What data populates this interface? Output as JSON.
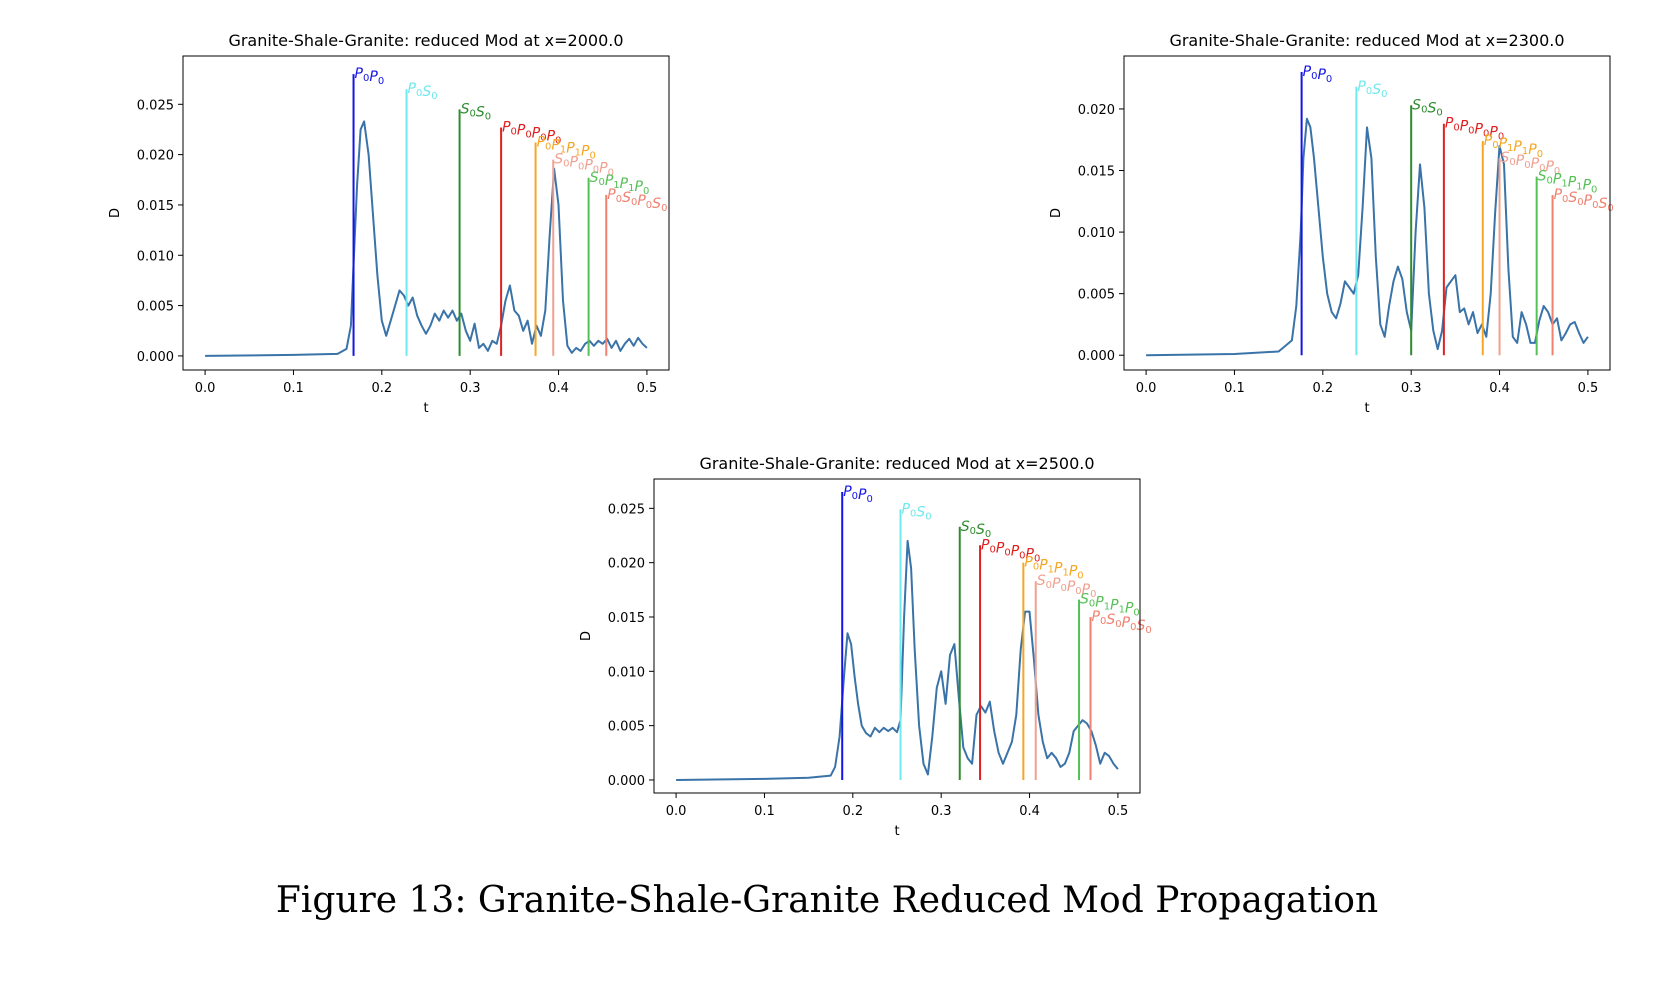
{
  "figure": {
    "caption": "Figure 13: Granite-Shale-Granite Reduced Mod Propagation"
  },
  "colors": {
    "curve": "#3a73a8",
    "P0P0": "#1414e6",
    "P0S0": "#6fe8ee",
    "S0S0": "#2e8b2e",
    "P0P0P0P0": "#e02020",
    "P0P1P1P0": "#f5a623",
    "S0P0P0P0": "#f0a090",
    "S0P1P1P0": "#55c055",
    "P0S0P0S0": "#f08070"
  },
  "chart_data": [
    {
      "type": "line",
      "title": "Granite-Shale-Granite: reduced Mod at x=2000.0",
      "xlabel": "t",
      "ylabel": "D",
      "xlim": [
        -0.025,
        0.525
      ],
      "ylim": [
        -0.0014,
        0.0298
      ],
      "xticks": [
        0.0,
        0.1,
        0.2,
        0.3,
        0.4,
        0.5
      ],
      "xtick_labels": [
        "0.0",
        "0.1",
        "0.2",
        "0.3",
        "0.4",
        "0.5"
      ],
      "yticks": [
        0.0,
        0.005,
        0.01,
        0.015,
        0.02,
        0.025
      ],
      "ytick_labels": [
        "0.000",
        "0.005",
        "0.010",
        "0.015",
        "0.020",
        "0.025"
      ],
      "grid": false,
      "series": [
        {
          "x": [
            0.0,
            0.1,
            0.15,
            0.16,
            0.165,
            0.168,
            0.172,
            0.176,
            0.18,
            0.185,
            0.19,
            0.195,
            0.2,
            0.205,
            0.21,
            0.215,
            0.22,
            0.225,
            0.23,
            0.235,
            0.24,
            0.245,
            0.25,
            0.255,
            0.26,
            0.265,
            0.27,
            0.275,
            0.28,
            0.285,
            0.29,
            0.295,
            0.3,
            0.305,
            0.31,
            0.315,
            0.32,
            0.325,
            0.33,
            0.335,
            0.34,
            0.345,
            0.35,
            0.355,
            0.36,
            0.365,
            0.37,
            0.375,
            0.38,
            0.385,
            0.39,
            0.395,
            0.4,
            0.405,
            0.41,
            0.415,
            0.42,
            0.425,
            0.43,
            0.435,
            0.44,
            0.445,
            0.45,
            0.455,
            0.46,
            0.465,
            0.47,
            0.475,
            0.48,
            0.485,
            0.49,
            0.495,
            0.5
          ],
          "y": [
            0.0,
            0.0001,
            0.0002,
            0.0007,
            0.003,
            0.009,
            0.017,
            0.0225,
            0.0233,
            0.02,
            0.014,
            0.008,
            0.0035,
            0.002,
            0.0035,
            0.005,
            0.0065,
            0.006,
            0.005,
            0.0058,
            0.004,
            0.003,
            0.0022,
            0.003,
            0.0042,
            0.0035,
            0.0045,
            0.0038,
            0.0045,
            0.0035,
            0.0042,
            0.0025,
            0.0015,
            0.0032,
            0.0008,
            0.0012,
            0.0005,
            0.0015,
            0.0012,
            0.003,
            0.0055,
            0.007,
            0.0045,
            0.004,
            0.0025,
            0.0035,
            0.0012,
            0.003,
            0.002,
            0.0045,
            0.012,
            0.0186,
            0.015,
            0.0055,
            0.001,
            0.0003,
            0.0008,
            0.0005,
            0.0012,
            0.0015,
            0.001,
            0.0015,
            0.0012,
            0.0017,
            0.0008,
            0.0015,
            0.0005,
            0.0012,
            0.0017,
            0.001,
            0.0018,
            0.0012,
            0.0008
          ]
        }
      ],
      "arrivals": [
        {
          "key": "P0P0",
          "t": 0.168,
          "top": 0.028
        },
        {
          "key": "P0S0",
          "t": 0.228,
          "top": 0.0265
        },
        {
          "key": "S0S0",
          "t": 0.288,
          "top": 0.0245
        },
        {
          "key": "P0P0P0P0",
          "t": 0.335,
          "top": 0.0227
        },
        {
          "key": "P0P1P1P0",
          "t": 0.374,
          "top": 0.0212
        },
        {
          "key": "S0P0P0P0",
          "t": 0.394,
          "top": 0.0195
        },
        {
          "key": "S0P1P1P0",
          "t": 0.434,
          "top": 0.0177
        },
        {
          "key": "P0S0P0S0",
          "t": 0.454,
          "top": 0.016
        }
      ]
    },
    {
      "type": "line",
      "title": "Granite-Shale-Granite: reduced Mod at x=2300.0",
      "xlabel": "t",
      "ylabel": "D",
      "xlim": [
        -0.025,
        0.525
      ],
      "ylim": [
        -0.0012,
        0.0243
      ],
      "xticks": [
        0.0,
        0.1,
        0.2,
        0.3,
        0.4,
        0.5
      ],
      "xtick_labels": [
        "0.0",
        "0.1",
        "0.2",
        "0.3",
        "0.4",
        "0.5"
      ],
      "yticks": [
        0.0,
        0.005,
        0.01,
        0.015,
        0.02
      ],
      "ytick_labels": [
        "0.000",
        "0.005",
        "0.010",
        "0.015",
        "0.020"
      ],
      "grid": false,
      "series": [
        {
          "x": [
            0.0,
            0.1,
            0.15,
            0.165,
            0.17,
            0.175,
            0.178,
            0.182,
            0.186,
            0.19,
            0.195,
            0.2,
            0.205,
            0.21,
            0.215,
            0.22,
            0.225,
            0.23,
            0.235,
            0.24,
            0.245,
            0.25,
            0.255,
            0.26,
            0.265,
            0.27,
            0.275,
            0.28,
            0.285,
            0.29,
            0.295,
            0.3,
            0.305,
            0.31,
            0.315,
            0.32,
            0.325,
            0.33,
            0.335,
            0.34,
            0.345,
            0.35,
            0.355,
            0.36,
            0.365,
            0.37,
            0.375,
            0.38,
            0.385,
            0.39,
            0.395,
            0.4,
            0.405,
            0.41,
            0.415,
            0.42,
            0.425,
            0.43,
            0.435,
            0.44,
            0.445,
            0.45,
            0.455,
            0.46,
            0.465,
            0.47,
            0.475,
            0.48,
            0.485,
            0.49,
            0.495,
            0.5
          ],
          "y": [
            0.0,
            0.0001,
            0.0003,
            0.0012,
            0.004,
            0.01,
            0.016,
            0.0192,
            0.0185,
            0.016,
            0.012,
            0.008,
            0.005,
            0.0035,
            0.003,
            0.0042,
            0.006,
            0.0055,
            0.005,
            0.0065,
            0.012,
            0.0185,
            0.016,
            0.008,
            0.0025,
            0.0015,
            0.004,
            0.006,
            0.0072,
            0.0062,
            0.0035,
            0.002,
            0.01,
            0.0155,
            0.012,
            0.005,
            0.002,
            0.0005,
            0.002,
            0.0055,
            0.006,
            0.0065,
            0.0035,
            0.0038,
            0.0025,
            0.0035,
            0.0018,
            0.0025,
            0.0015,
            0.005,
            0.0115,
            0.017,
            0.0155,
            0.007,
            0.0015,
            0.001,
            0.0035,
            0.0025,
            0.001,
            0.001,
            0.0028,
            0.004,
            0.0035,
            0.0025,
            0.003,
            0.0012,
            0.0018,
            0.0025,
            0.0027,
            0.0018,
            0.001,
            0.0015
          ]
        }
      ],
      "arrivals": [
        {
          "key": "P0P0",
          "t": 0.176,
          "top": 0.023
        },
        {
          "key": "P0S0",
          "t": 0.238,
          "top": 0.0218
        },
        {
          "key": "S0S0",
          "t": 0.3,
          "top": 0.0203
        },
        {
          "key": "P0P0P0P0",
          "t": 0.337,
          "top": 0.0188
        },
        {
          "key": "P0P1P1P0",
          "t": 0.381,
          "top": 0.0174
        },
        {
          "key": "S0P0P0P0",
          "t": 0.4,
          "top": 0.016
        },
        {
          "key": "S0P1P1P0",
          "t": 0.442,
          "top": 0.0145
        },
        {
          "key": "P0S0P0S0",
          "t": 0.46,
          "top": 0.013
        }
      ]
    },
    {
      "type": "line",
      "title": "Granite-Shale-Granite: reduced Mod at x=2500.0",
      "xlabel": "t",
      "ylabel": "D",
      "xlim": [
        -0.025,
        0.525
      ],
      "ylim": [
        -0.0012,
        0.0277
      ],
      "xticks": [
        0.0,
        0.1,
        0.2,
        0.3,
        0.4,
        0.5
      ],
      "xtick_labels": [
        "0.0",
        "0.1",
        "0.2",
        "0.3",
        "0.4",
        "0.5"
      ],
      "yticks": [
        0.0,
        0.005,
        0.01,
        0.015,
        0.02,
        0.025
      ],
      "ytick_labels": [
        "0.000",
        "0.005",
        "0.010",
        "0.015",
        "0.020",
        "0.025"
      ],
      "grid": false,
      "series": [
        {
          "x": [
            0.0,
            0.1,
            0.15,
            0.175,
            0.18,
            0.185,
            0.19,
            0.194,
            0.198,
            0.202,
            0.206,
            0.21,
            0.215,
            0.22,
            0.225,
            0.23,
            0.235,
            0.24,
            0.245,
            0.25,
            0.254,
            0.258,
            0.262,
            0.266,
            0.27,
            0.275,
            0.28,
            0.285,
            0.29,
            0.295,
            0.3,
            0.305,
            0.31,
            0.315,
            0.32,
            0.325,
            0.33,
            0.335,
            0.34,
            0.345,
            0.35,
            0.355,
            0.36,
            0.365,
            0.37,
            0.375,
            0.38,
            0.385,
            0.39,
            0.395,
            0.4,
            0.405,
            0.41,
            0.415,
            0.42,
            0.425,
            0.43,
            0.435,
            0.44,
            0.445,
            0.45,
            0.455,
            0.46,
            0.465,
            0.47,
            0.475,
            0.48,
            0.485,
            0.49,
            0.495,
            0.5
          ],
          "y": [
            0.0,
            0.0001,
            0.0002,
            0.0004,
            0.0012,
            0.004,
            0.0095,
            0.0135,
            0.0125,
            0.0095,
            0.007,
            0.005,
            0.0043,
            0.004,
            0.0048,
            0.0044,
            0.0048,
            0.0045,
            0.0048,
            0.0044,
            0.0055,
            0.015,
            0.022,
            0.0195,
            0.012,
            0.005,
            0.0015,
            0.0005,
            0.004,
            0.0085,
            0.01,
            0.007,
            0.0115,
            0.0125,
            0.0075,
            0.003,
            0.002,
            0.0015,
            0.006,
            0.0068,
            0.0062,
            0.0072,
            0.0045,
            0.0025,
            0.0015,
            0.0025,
            0.0035,
            0.006,
            0.012,
            0.0155,
            0.0155,
            0.011,
            0.006,
            0.0035,
            0.002,
            0.0025,
            0.002,
            0.0012,
            0.0015,
            0.0025,
            0.0045,
            0.005,
            0.0055,
            0.0052,
            0.0045,
            0.0032,
            0.0015,
            0.0025,
            0.0022,
            0.0015,
            0.001
          ]
        }
      ],
      "arrivals": [
        {
          "key": "P0P0",
          "t": 0.188,
          "top": 0.0265
        },
        {
          "key": "P0S0",
          "t": 0.254,
          "top": 0.0249
        },
        {
          "key": "S0S0",
          "t": 0.321,
          "top": 0.0233
        },
        {
          "key": "P0P0P0P0",
          "t": 0.344,
          "top": 0.0216
        },
        {
          "key": "P0P1P1P0",
          "t": 0.393,
          "top": 0.02
        },
        {
          "key": "S0P0P0P0",
          "t": 0.407,
          "top": 0.0183
        },
        {
          "key": "S0P1P1P0",
          "t": 0.456,
          "top": 0.0166
        },
        {
          "key": "P0S0P0S0",
          "t": 0.469,
          "top": 0.015
        }
      ]
    }
  ]
}
